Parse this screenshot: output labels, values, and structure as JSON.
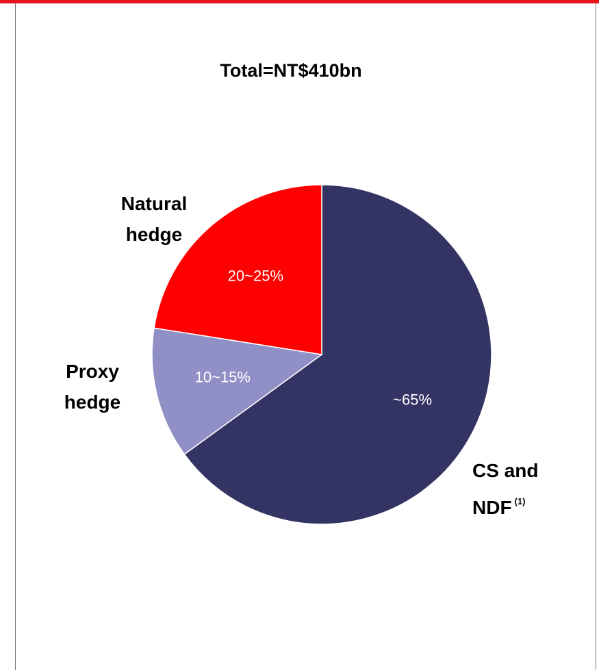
{
  "chart_data": {
    "type": "pie",
    "title": "Total=NT$410bn",
    "categories": [
      "CS and NDF",
      "Proxy hedge",
      "Natural hedge"
    ],
    "category_notes": [
      "(1)",
      null,
      null
    ],
    "values": [
      65,
      12.5,
      22.5
    ],
    "value_labels": [
      "~65%",
      "10~15%",
      "20~25%"
    ],
    "colors": [
      "#343464",
      "#9090c6",
      "#ff0000"
    ]
  }
}
